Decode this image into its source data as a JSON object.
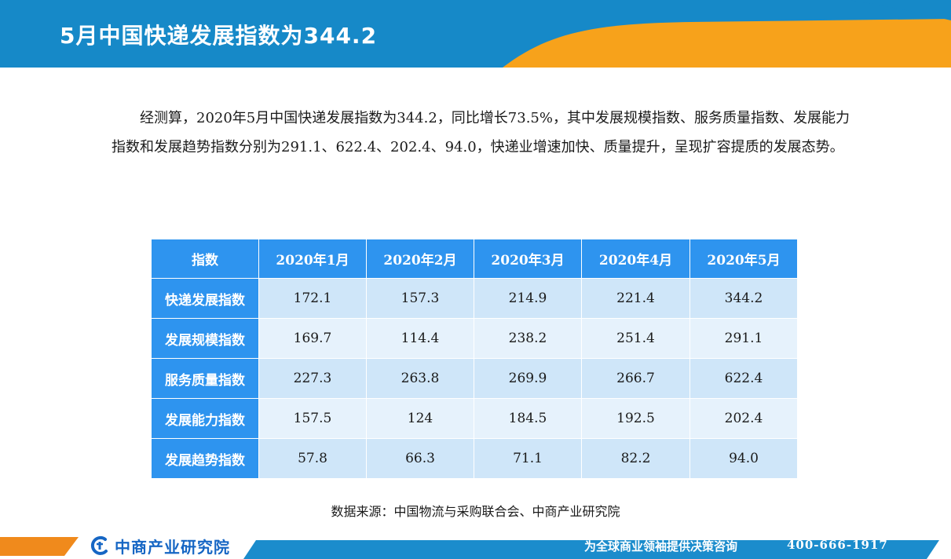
{
  "header": {
    "title": "5月中国快递发展指数为344.2"
  },
  "paragraph": "经测算，2020年5月中国快递发展指数为344.2，同比增长73.5%，其中发展规模指数、服务质量指数、发展能力指数和发展趋势指数分别为291.1、622.4、202.4、94.0，快递业增速加快、质量提升，呈现扩容提质的发展态势。",
  "table": {
    "headers": [
      "指数",
      "2020年1月",
      "2020年2月",
      "2020年3月",
      "2020年4月",
      "2020年5月"
    ],
    "rows": [
      [
        "快递发展指数",
        "172.1",
        "157.3",
        "214.9",
        "221.4",
        "344.2"
      ],
      [
        "发展规模指数",
        "169.7",
        "114.4",
        "238.2",
        "251.4",
        "291.1"
      ],
      [
        "服务质量指数",
        "227.3",
        "263.8",
        "269.9",
        "266.7",
        "622.4"
      ],
      [
        "发展能力指数",
        "157.5",
        "124",
        "184.5",
        "192.5",
        "202.4"
      ],
      [
        "发展趋势指数",
        "57.8",
        "66.3",
        "71.1",
        "82.2",
        "94.0"
      ]
    ]
  },
  "source": "数据来源：中国物流与采购联合会、中商产业研究院",
  "footer": {
    "brand": "中商产业研究院",
    "slogan": "为全球商业领袖提供决策咨询",
    "phone": "400-666-1917"
  },
  "colors": {
    "header_blue": "#1689c8",
    "header_orange": "#f7a21b",
    "table_head": "#2e94ef",
    "row_odd": "#cfe6f9",
    "row_even": "#e6f2fc",
    "footer_blue": "#1b8ccc",
    "footer_orange": "#f08a1c",
    "brand_blue": "#1666c4"
  }
}
